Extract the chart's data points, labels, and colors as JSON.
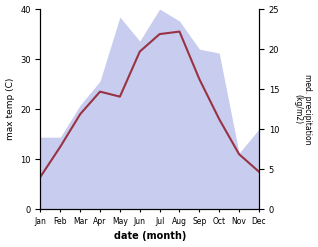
{
  "months": [
    "Jan",
    "Feb",
    "Mar",
    "Apr",
    "May",
    "Jun",
    "Jul",
    "Aug",
    "Sep",
    "Oct",
    "Nov",
    "Dec"
  ],
  "temperature": [
    6.5,
    12.5,
    19.0,
    23.5,
    22.5,
    31.5,
    35.0,
    35.5,
    26.0,
    18.0,
    11.0,
    7.5
  ],
  "precipitation": [
    9.0,
    9.0,
    13.0,
    16.0,
    24.0,
    21.0,
    25.0,
    23.5,
    20.0,
    19.5,
    7.0,
    10.0
  ],
  "temp_color": "#993344",
  "precip_fill_color": "#c8ccee",
  "temp_ylim": [
    0,
    40
  ],
  "precip_ylim": [
    0,
    25
  ],
  "temp_yticks": [
    0,
    10,
    20,
    30,
    40
  ],
  "precip_yticks": [
    0,
    5,
    10,
    15,
    20,
    25
  ],
  "ylabel_left": "max temp (C)",
  "ylabel_right": "med. precipitation\n(kg/m2)",
  "xlabel": "date (month)",
  "background_color": "#ffffff"
}
